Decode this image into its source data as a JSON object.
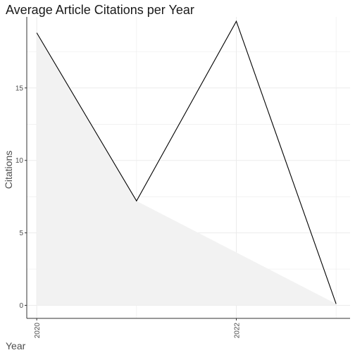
{
  "chart_data": {
    "type": "line",
    "title": "Average Article Citations per Year",
    "xlabel": "Year",
    "ylabel": "Citations",
    "x": [
      2020,
      2021,
      2022,
      2023
    ],
    "series": [
      {
        "values": [
          18.8,
          7.2,
          19.6,
          0.1
        ]
      }
    ],
    "shaded_area": {
      "x": [
        2020,
        2021,
        2023
      ],
      "values": [
        18.8,
        7.2,
        0.1
      ]
    },
    "xlim": [
      2019.9,
      2023.14
    ],
    "ylim": [
      -0.9,
      19.9
    ],
    "x_ticks": [
      "2020",
      "2022"
    ],
    "x_tick_values": [
      2020,
      2022
    ],
    "y_ticks": [
      "0",
      "5",
      "10",
      "15"
    ],
    "y_tick_values": [
      0,
      5,
      10,
      15
    ],
    "grid": true,
    "colors": {
      "line": "#000000",
      "area": "#f2f2f2",
      "grid": "#ebebeb",
      "axis": "#333333"
    }
  }
}
